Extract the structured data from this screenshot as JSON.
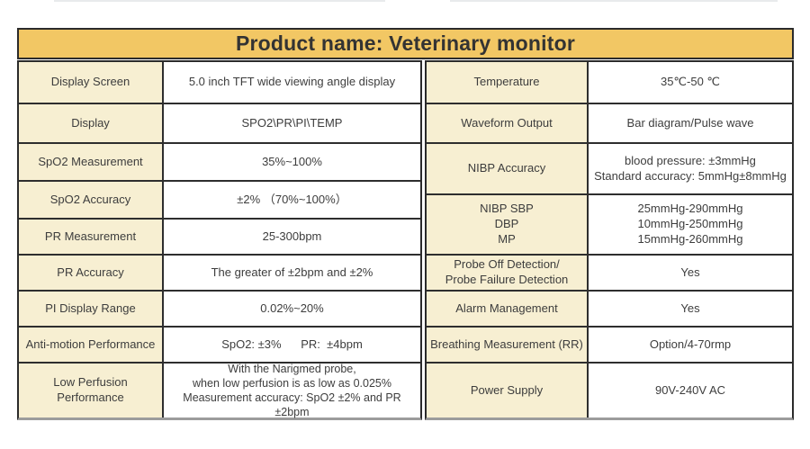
{
  "header": {
    "title": "Product name: Veterinary monitor"
  },
  "colors": {
    "header_bg": "#f2c764",
    "label_bg": "#f7efd2",
    "border": "#2b2b2b",
    "table_bottom_border": "#9c9c9c"
  },
  "left_table": {
    "rows": [
      {
        "label": "Display Screen",
        "value": "5.0 inch TFT wide viewing angle display"
      },
      {
        "label": "Display",
        "value": "SPO2\\PR\\PI\\TEMP"
      },
      {
        "label": "SpO2 Measurement",
        "value": "35%~100%"
      },
      {
        "label": "SpO2 Accuracy",
        "value": "±2% （70%~100%）"
      },
      {
        "label": "PR Measurement",
        "value": "25-300bpm"
      },
      {
        "label": "PR Accuracy",
        "value": "The greater of ±2bpm and ±2%"
      },
      {
        "label": "PI Display Range",
        "value": "0.02%~20%"
      },
      {
        "label": "Anti-motion Performance",
        "value": "SpO2: ±3%      PR:  ±4bpm"
      },
      {
        "label": "Low Perfusion Performance",
        "value": "With the Narigmed probe,\nwhen low perfusion is as low as 0.025%\nMeasurement accuracy: SpO2 ±2% and PR ±2bpm"
      }
    ]
  },
  "right_table": {
    "rows": [
      {
        "label": "Temperature",
        "value": "35℃-50 ℃"
      },
      {
        "label": "Waveform Output",
        "value": "Bar diagram/Pulse wave"
      },
      {
        "label": "NIBP Accuracy",
        "value": "blood pressure: ±3mmHg\nStandard accuracy: 5mmHg±8mmHg"
      },
      {
        "label": "NIBP SBP\nDBP\nMP",
        "value": "25mmHg-290mmHg\n10mmHg-250mmHg\n15mmHg-260mmHg"
      },
      {
        "label": "Probe Off Detection/\nProbe Failure Detection",
        "value": "Yes"
      },
      {
        "label": "Alarm Management",
        "value": "Yes"
      },
      {
        "label": "Breathing Measurement (RR)",
        "value": "Option/4-70rmp"
      },
      {
        "label": "Power Supply",
        "value": "90V-240V AC"
      }
    ]
  }
}
